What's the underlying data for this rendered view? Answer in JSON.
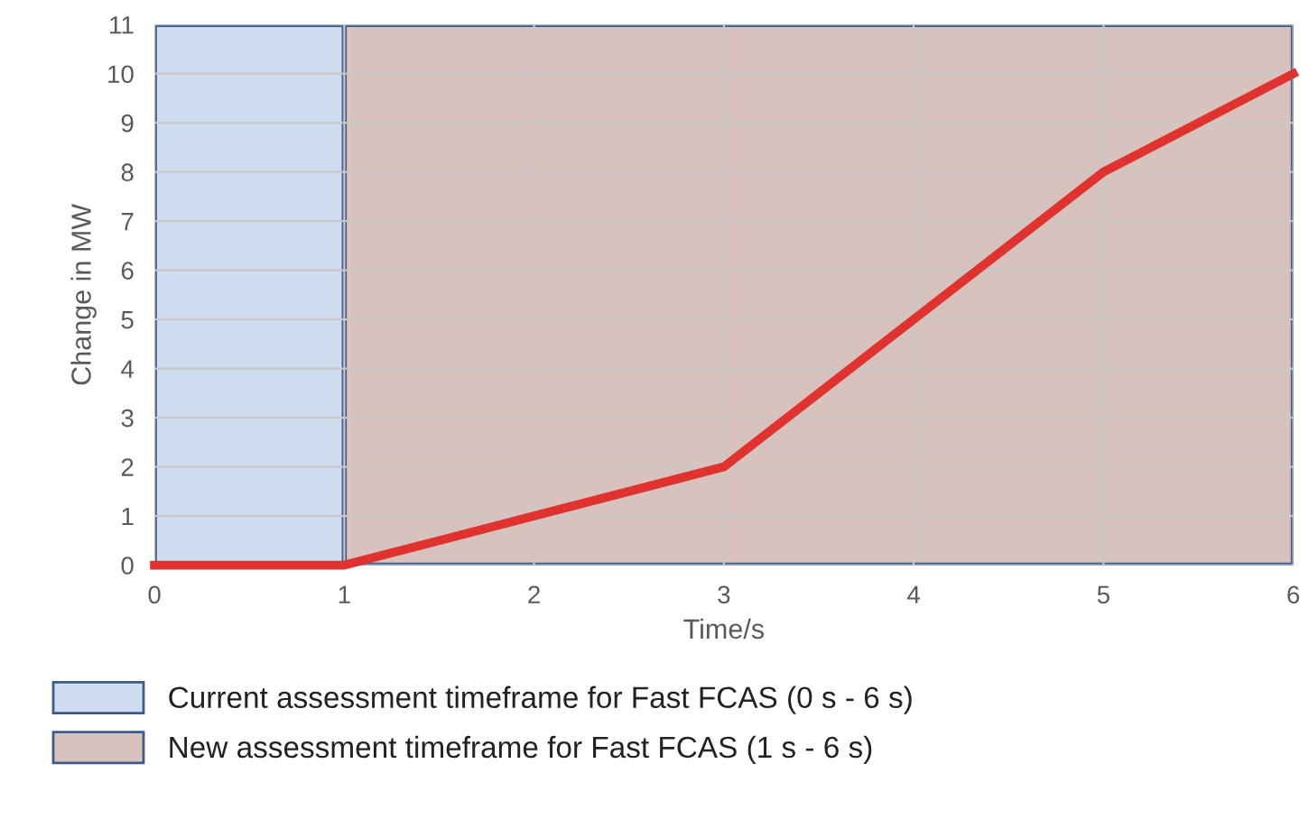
{
  "chart_data": {
    "type": "line",
    "xlabel": "Time/s",
    "ylabel": "Change in MW",
    "x": [
      0,
      1,
      2,
      3,
      4,
      5,
      6
    ],
    "series": [
      {
        "color": "#e0332f",
        "values": [
          0,
          0,
          1,
          2,
          5,
          8,
          10
        ]
      }
    ],
    "xlim": [
      0,
      6
    ],
    "ylim": [
      0,
      11
    ],
    "xticks": [
      0,
      1,
      2,
      3,
      4,
      5,
      6
    ],
    "yticks": [
      0,
      1,
      2,
      3,
      4,
      5,
      6,
      7,
      8,
      9,
      10,
      11
    ],
    "bands": [
      {
        "axis": "x",
        "from": 0,
        "to": 6,
        "label": "Current assessment timeframe for Fast FCAS (0 s - 6 s)",
        "color": "#cfdbef"
      },
      {
        "axis": "x",
        "from": 1,
        "to": 6,
        "label": "New assessment timeframe for Fast FCAS (1 s - 6 s)",
        "color": "#d8c2be"
      }
    ],
    "grid": true,
    "legend": "bottom",
    "marker": "none",
    "line_style": "solid"
  }
}
